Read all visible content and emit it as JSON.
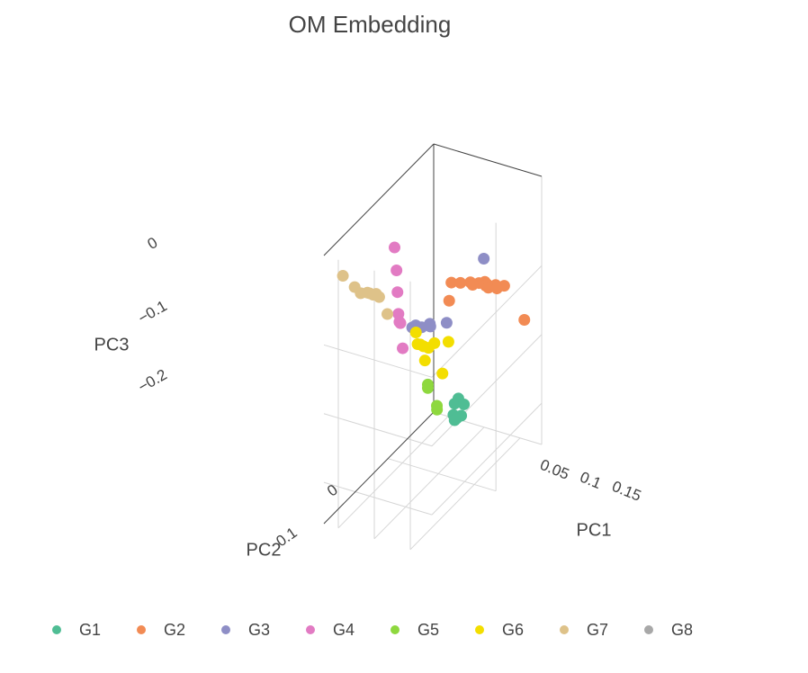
{
  "chart_data": {
    "type": "scatter3d",
    "title": "OM Embedding",
    "axes": {
      "x": {
        "label": "PC1",
        "ticks": [
          0.05,
          0.1,
          0.15
        ],
        "tick_labels": [
          "0.05",
          "0.1",
          "0.15"
        ]
      },
      "y": {
        "label": "PC2",
        "ticks": [
          0,
          0.1
        ],
        "tick_labels": [
          "0",
          "0.1"
        ]
      },
      "z": {
        "label": "PC3",
        "ticks": [
          0,
          -0.1,
          -0.2
        ],
        "tick_labels": [
          "0",
          "−0.1",
          "−0.2"
        ]
      }
    },
    "series": [
      {
        "name": "G1",
        "color": "#4fbd94",
        "points": [
          [
            0.061,
            0.003,
            -0.236
          ],
          [
            0.061,
            0.003,
            -0.26
          ],
          [
            0.079,
            0.011,
            -0.226
          ],
          [
            0.077,
            0.02,
            -0.212
          ],
          [
            0.065,
            0.012,
            -0.245
          ],
          [
            0.072,
            0.006,
            -0.248
          ],
          [
            0.067,
            0.008,
            -0.252
          ]
        ]
      },
      {
        "name": "G2",
        "color": "#f28b54",
        "points": [
          [
            0.131,
            0.06,
            0.0
          ],
          [
            0.141,
            0.058,
            0.0
          ],
          [
            0.151,
            0.055,
            0.0
          ],
          [
            0.161,
            0.052,
            0.0
          ],
          [
            0.156,
            0.06,
            0.0
          ],
          [
            0.146,
            0.063,
            0.0
          ],
          [
            0.126,
            0.066,
            0.0
          ],
          [
            0.121,
            0.063,
            0.0
          ],
          [
            0.111,
            0.069,
            0.0
          ],
          [
            0.101,
            0.073,
            0.0
          ],
          [
            0.096,
            0.07,
            -0.03
          ],
          [
            0.175,
            0.03,
            -0.06
          ],
          [
            0.141,
            0.061,
            0.0
          ],
          [
            0.136,
            0.055,
            0.0
          ]
        ]
      },
      {
        "name": "G3",
        "color": "#8e8ec6",
        "points": [
          [
            0.085,
            0.095,
            -0.05
          ],
          [
            0.087,
            0.097,
            -0.052
          ],
          [
            0.08,
            0.105,
            -0.05
          ],
          [
            0.076,
            0.105,
            -0.052
          ],
          [
            0.073,
            0.107,
            -0.048
          ],
          [
            0.07,
            0.11,
            -0.05
          ],
          [
            0.072,
            0.109,
            -0.05
          ],
          [
            0.102,
            0.085,
            -0.05
          ],
          [
            0.125,
            0.04,
            0.02
          ]
        ]
      },
      {
        "name": "G4",
        "color": "#e27bc3",
        "points": [
          [
            0.09,
            0.18,
            0.12
          ],
          [
            0.08,
            0.16,
            0.07
          ],
          [
            0.075,
            0.15,
            0.03
          ],
          [
            0.07,
            0.14,
            -0.01
          ],
          [
            0.065,
            0.13,
            -0.03
          ],
          [
            0.06,
            0.12,
            -0.04
          ],
          [
            0.06,
            0.115,
            -0.08
          ]
        ]
      },
      {
        "name": "G5",
        "color": "#8ed83e",
        "points": [
          [
            0.06,
            0.06,
            -0.17
          ],
          [
            0.06,
            0.06,
            -0.175
          ],
          [
            0.063,
            0.045,
            -0.21
          ],
          [
            0.06,
            0.04,
            -0.22
          ]
        ]
      },
      {
        "name": "G6",
        "color": "#f3de00",
        "points": [
          [
            0.075,
            0.1,
            -0.08
          ],
          [
            0.068,
            0.095,
            -0.085
          ],
          [
            0.08,
            0.09,
            -0.09
          ],
          [
            0.073,
            0.09,
            -0.09
          ],
          [
            0.085,
            0.085,
            -0.085
          ],
          [
            0.072,
            0.105,
            -0.06
          ],
          [
            0.095,
            0.07,
            -0.09
          ],
          [
            0.075,
            0.09,
            -0.11
          ],
          [
            0.093,
            0.08,
            -0.13
          ]
        ]
      },
      {
        "name": "G7",
        "color": "#dec289",
        "points": [
          [
            0.05,
            0.23,
            0.1
          ],
          [
            0.06,
            0.22,
            0.08
          ],
          [
            0.062,
            0.21,
            0.065
          ],
          [
            0.065,
            0.2,
            0.06
          ],
          [
            0.07,
            0.195,
            0.055
          ],
          [
            0.075,
            0.19,
            0.05
          ],
          [
            0.08,
            0.18,
            0.02
          ],
          [
            0.072,
            0.192,
            0.055
          ],
          [
            0.068,
            0.2,
            0.06
          ]
        ]
      },
      {
        "name": "G8",
        "color": "#a8a8a8",
        "points": []
      }
    ]
  }
}
